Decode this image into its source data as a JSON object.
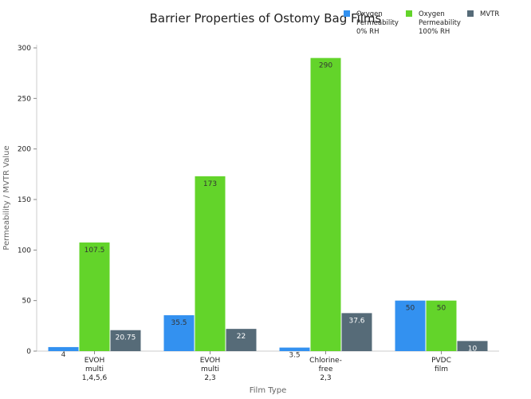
{
  "chart_data": {
    "type": "bar",
    "title": "Barrier Properties of Ostomy Bag Films",
    "xlabel": "Film Type",
    "ylabel": "Permeability / MVTR Value",
    "ylim": [
      0,
      300
    ],
    "yticks": [
      0,
      50,
      100,
      150,
      200,
      250,
      300
    ],
    "grid": false,
    "legend_position": "top-right",
    "categories": [
      [
        "EVOH",
        "multi",
        "1,4,5,6"
      ],
      [
        "EVOH",
        "multi",
        "2,3"
      ],
      [
        "Chlorine-",
        "free",
        "2,3"
      ],
      [
        "PVDC",
        "film"
      ]
    ],
    "series": [
      {
        "name": [
          "Oxygen",
          "Permeability",
          "0% RH"
        ],
        "color": "#3391f0",
        "values": [
          4,
          35.5,
          3.5,
          50
        ],
        "labels": [
          "4",
          "35.5",
          "3.5",
          "50"
        ]
      },
      {
        "name": [
          "Oxygen",
          "Permeability",
          "100% RH"
        ],
        "color": "#63d42a",
        "values": [
          107.5,
          173,
          290,
          50
        ],
        "labels": [
          "107.5",
          "173",
          "290",
          "50"
        ]
      },
      {
        "name": [
          "MVTR"
        ],
        "color": "#566b78",
        "values": [
          20.75,
          22,
          37.6,
          10
        ],
        "labels": [
          "20.75",
          "22",
          "37.6",
          "10"
        ]
      }
    ]
  }
}
